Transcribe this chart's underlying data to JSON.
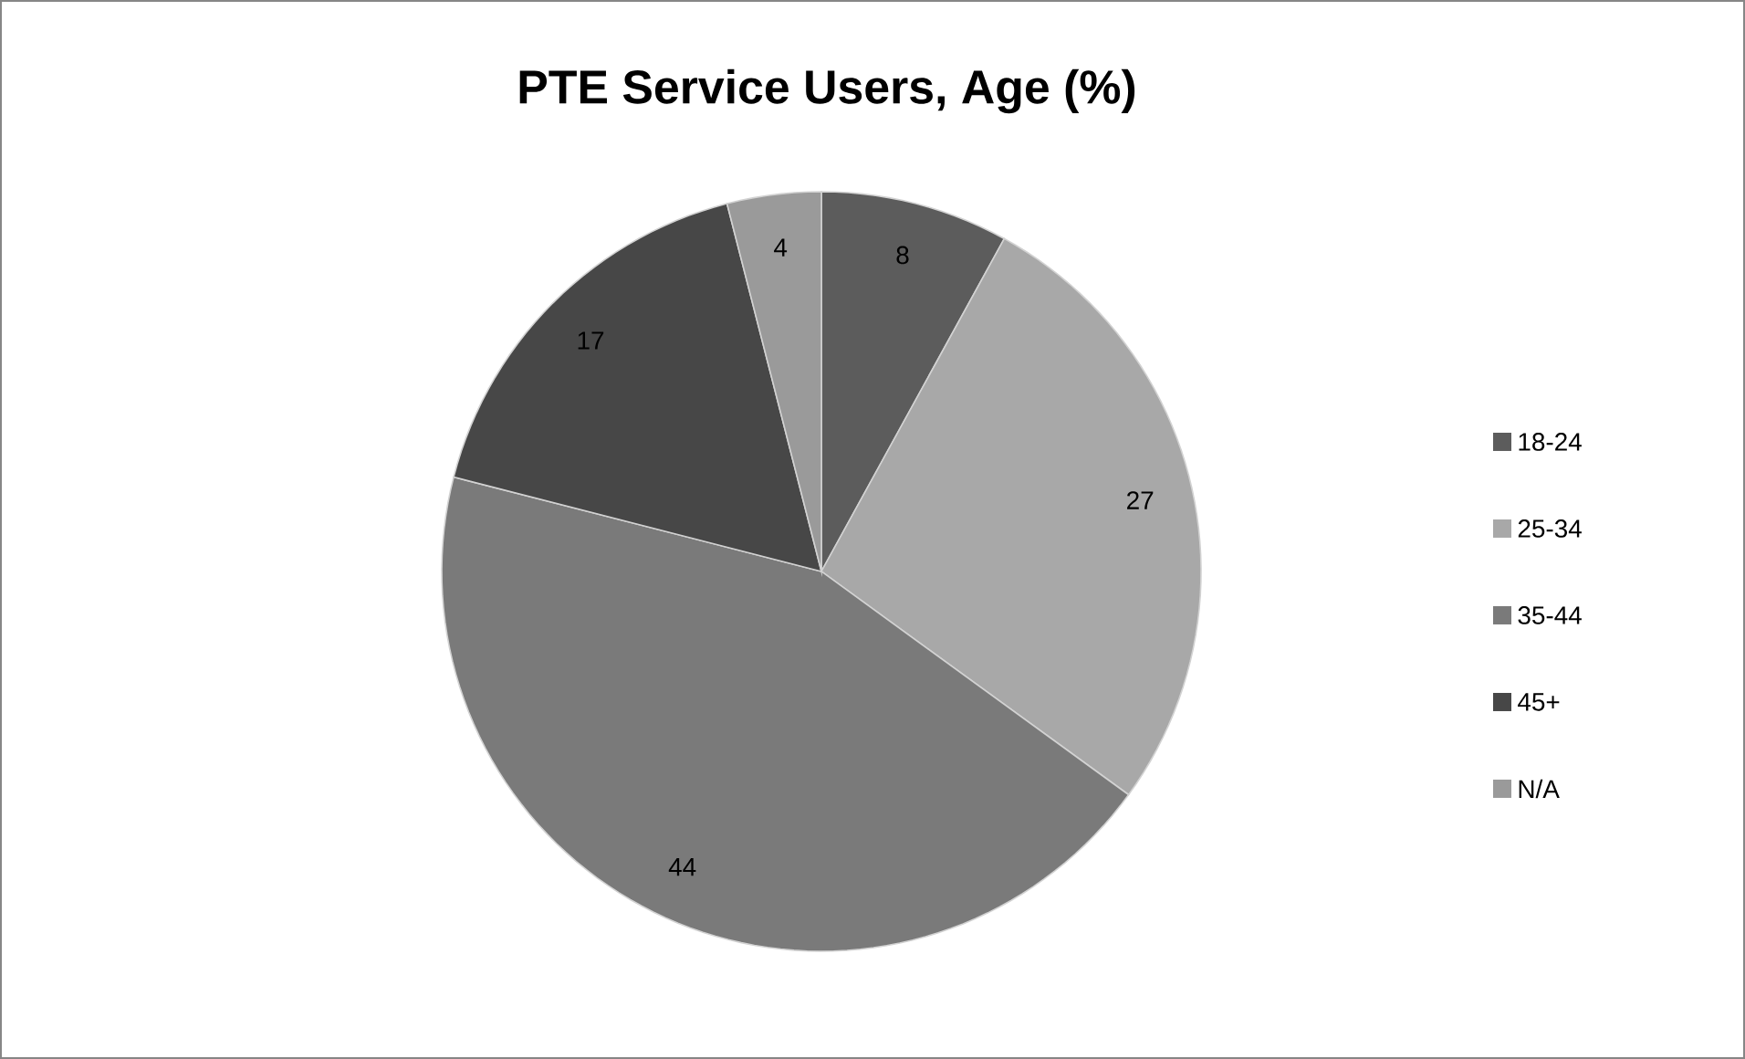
{
  "chart_data": {
    "type": "pie",
    "title": "PTE Service Users, Age (%)",
    "categories": [
      "18-24",
      "25-34",
      "35-44",
      "45+",
      "N/A"
    ],
    "values": [
      8,
      27,
      44,
      17,
      4
    ],
    "colors": [
      "#5c5c5c",
      "#a8a8a8",
      "#7a7a7a",
      "#474747",
      "#9a9a9a"
    ],
    "data_labels": true,
    "legend": "right"
  }
}
